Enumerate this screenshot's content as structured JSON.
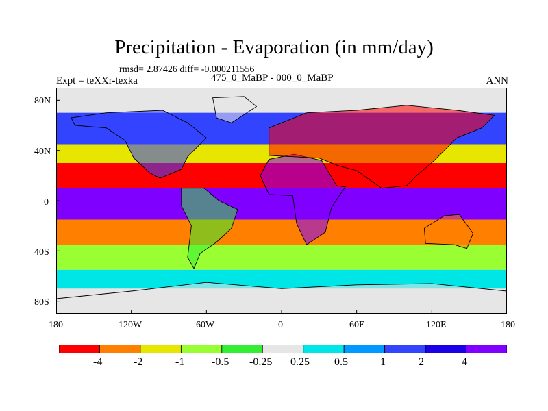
{
  "title": "Precipitation - Evaporation (in mm/day)",
  "stats_line": "rmsd= 2.87426 diff= -0.000211556",
  "expt_label": "Expt = teXXr-texka",
  "case_label": "475_0_MaBP - 000_0_MaBP",
  "season_label": "ANN",
  "map": {
    "lon_ticks": [
      "180",
      "120W",
      "60W",
      "0",
      "60E",
      "120E",
      "180"
    ],
    "lat_ticks": [
      "80N",
      "40N",
      "0",
      "40S",
      "80S"
    ]
  },
  "colorbar": {
    "colors": [
      "#ff0000",
      "#ff8000",
      "#e6e600",
      "#99ff33",
      "#33ee33",
      "#e6e6e6",
      "#00e6e6",
      "#0099ff",
      "#3344ff",
      "#1a00e6",
      "#8000ff"
    ],
    "labels": [
      "-4",
      "-2",
      "-1",
      "-0.5",
      "-0.25",
      "0.25",
      "0.5",
      "1",
      "2",
      "4"
    ]
  },
  "chart_data": {
    "type": "heatmap",
    "title": "Precipitation - Evaporation (in mm/day)",
    "subtitle": "rmsd= 2.87426 diff= -0.000211556",
    "xlabel": "",
    "ylabel": "",
    "x_ticks": [
      "180",
      "120W",
      "60W",
      "0",
      "60E",
      "120E",
      "180"
    ],
    "y_ticks": [
      "80N",
      "40N",
      "0",
      "40S",
      "80S"
    ],
    "xlim": [
      -180,
      180
    ],
    "ylim": [
      -90,
      90
    ],
    "levels": [
      -4,
      -2,
      -1,
      -0.5,
      -0.25,
      0.25,
      0.5,
      1,
      2,
      4
    ],
    "bands": [
      {
        "lat_range": [
          70,
          90
        ],
        "value": 0
      },
      {
        "lat_range": [
          45,
          70
        ],
        "value": 1.5
      },
      {
        "lat_range": [
          30,
          45
        ],
        "value": -1.5
      },
      {
        "lat_range": [
          10,
          30
        ],
        "value": -4.5
      },
      {
        "lat_range": [
          -15,
          10
        ],
        "value": 4.5
      },
      {
        "lat_range": [
          -35,
          -15
        ],
        "value": -3
      },
      {
        "lat_range": [
          -55,
          -35
        ],
        "value": -0.6
      },
      {
        "lat_range": [
          -70,
          -55
        ],
        "value": 0.4
      },
      {
        "lat_range": [
          -90,
          -70
        ],
        "value": 0
      }
    ]
  }
}
